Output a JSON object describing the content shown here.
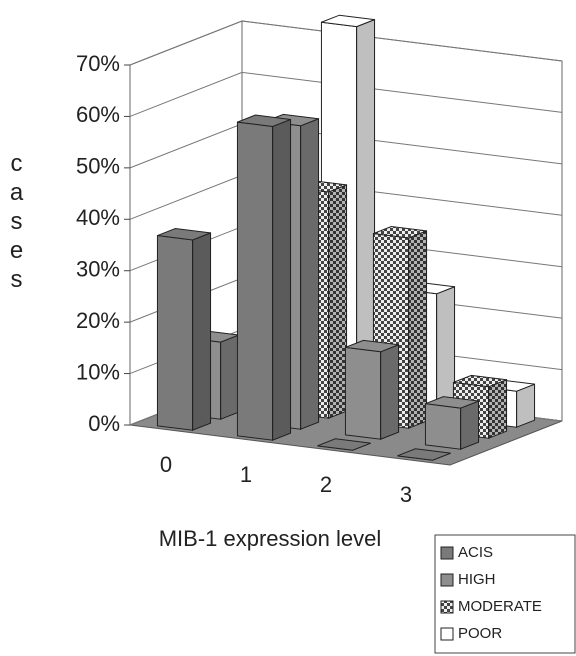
{
  "chart_data": {
    "type": "bar3d",
    "x_label": "MIB-1 expression level",
    "y_label": "cases",
    "categories": [
      "0",
      "1",
      "2",
      "3"
    ],
    "series": [
      {
        "name": "ACIS",
        "color": "#7a7a7a",
        "values": [
          37,
          61,
          0,
          0
        ]
      },
      {
        "name": "HIGH",
        "color": "#8e8e8e",
        "values": [
          15,
          59,
          17,
          8
        ]
      },
      {
        "name": "MODERATE",
        "color": "#555555",
        "pattern": "checker",
        "values": [
          0,
          44,
          37,
          10
        ]
      },
      {
        "name": "POOR",
        "color": "#ffffff",
        "values": [
          0,
          74,
          24,
          7
        ]
      }
    ],
    "ylim": [
      0,
      70
    ],
    "yticks": [
      {
        "value": 0,
        "label": "0%"
      },
      {
        "value": 10,
        "label": "10%"
      },
      {
        "value": 20,
        "label": "20%"
      },
      {
        "value": 30,
        "label": "30%"
      },
      {
        "value": 40,
        "label": "40%"
      },
      {
        "value": 50,
        "label": "50%"
      },
      {
        "value": 60,
        "label": "60%"
      },
      {
        "value": 70,
        "label": "70%"
      }
    ],
    "grid": true,
    "legend": "lower right"
  }
}
